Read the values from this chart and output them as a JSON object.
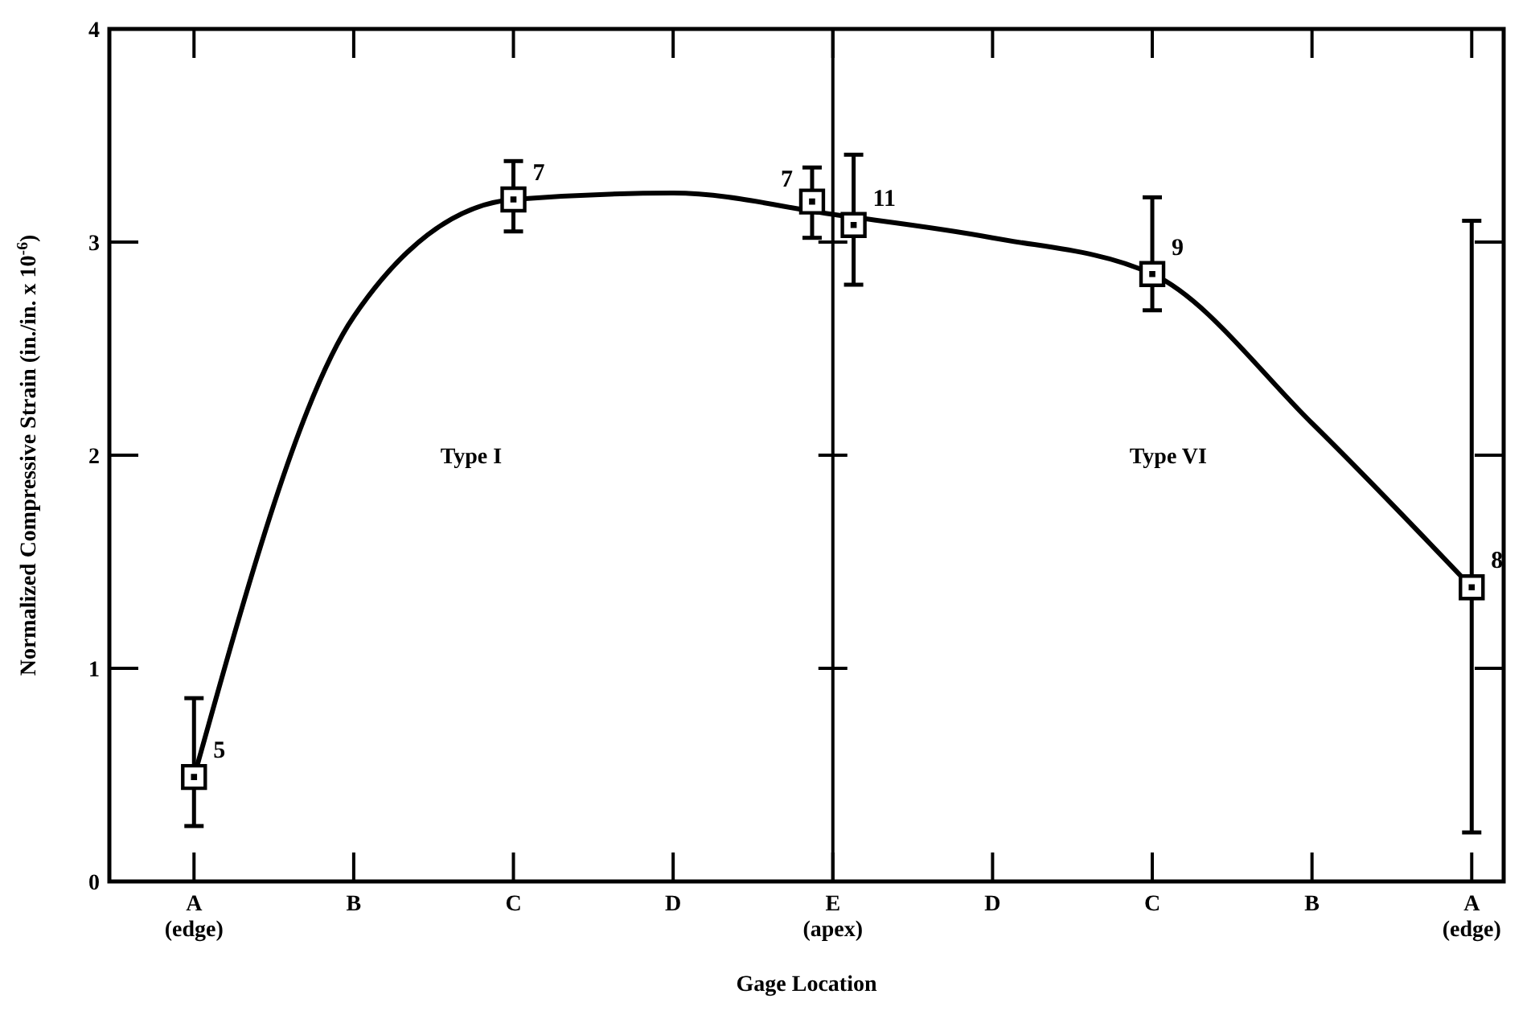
{
  "chart_data": {
    "type": "scatter",
    "xlabel": "Gage Location",
    "ylabel": "Normalized Compressive Strain (in./in. x 10$^{-6}$)",
    "categories": [
      "A\n(edge)",
      "B",
      "C",
      "D",
      "E\n(apex)",
      "D",
      "C",
      "B",
      "A\n(edge)"
    ],
    "ylim": [
      0,
      4
    ],
    "yticks": [
      0,
      1,
      2,
      3,
      4
    ],
    "grid": false,
    "series": [
      {
        "type": "line",
        "color": "#000000",
        "marker": "none",
        "line_style": "solid",
        "values": [
          0.49,
          2.65,
          3.2,
          3.23,
          3.13,
          3.02,
          2.85,
          2.15,
          1.38
        ]
      },
      {
        "color": "#000000",
        "marker": "square",
        "values": [
          0.49,
          null,
          3.2,
          null,
          3.19,
          null,
          null,
          null,
          null
        ],
        "errors": [
          [
            0.26,
            0.86
          ],
          null,
          [
            3.05,
            3.38
          ],
          null,
          [
            3.02,
            3.35
          ],
          null,
          null,
          null,
          null
        ]
      },
      {
        "color": "#000000",
        "marker": "square",
        "values": [
          null,
          null,
          null,
          null,
          3.08,
          null,
          2.85,
          null,
          1.38
        ],
        "errors": [
          null,
          null,
          null,
          null,
          [
            2.8,
            3.41
          ],
          null,
          [
            2.68,
            3.21
          ],
          null,
          [
            0.23,
            3.1
          ]
        ]
      }
    ],
    "ref_lines": [
      {
        "axis": "x",
        "value": "E\n(apex)",
        "color": "#000000"
      }
    ],
    "annotations": [
      "5",
      "7",
      "7",
      "11",
      "9",
      "8",
      "Type I",
      "Type VI"
    ]
  }
}
